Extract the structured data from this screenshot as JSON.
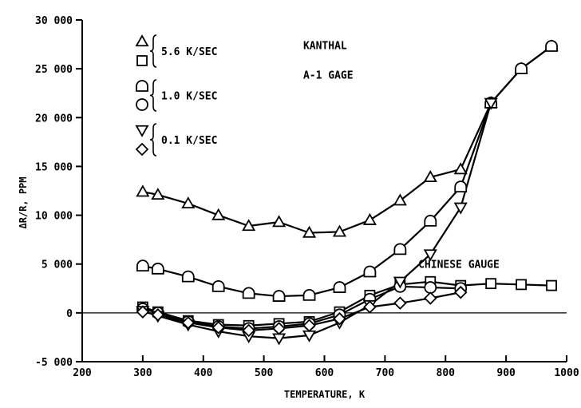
{
  "chart_data": {
    "type": "line",
    "xlabel": "TEMPERATURE, K",
    "ylabel": "ΔR/R, PPM",
    "xlim": [
      200,
      1000
    ],
    "ylim": [
      -5000,
      30000
    ],
    "xticks": [
      200,
      300,
      400,
      500,
      600,
      700,
      800,
      900,
      1000
    ],
    "xtick_labels": [
      "200",
      "300",
      "400",
      "500",
      "600",
      "700",
      "800",
      "900",
      "1000"
    ],
    "yticks": [
      -5000,
      0,
      5000,
      10000,
      15000,
      20000,
      25000,
      30000
    ],
    "ytick_labels": [
      "-5 000",
      "0",
      "5 000",
      "10 000",
      "15 000",
      "20 000",
      "25 000",
      "30 000"
    ],
    "zero_line": true,
    "grid": false,
    "legend_position": "top-left",
    "legend_groups": [
      {
        "label": "5.6 K/SEC",
        "markers": [
          "triangle-up",
          "square"
        ]
      },
      {
        "label": "1.0 K/SEC",
        "markers": [
          "rounded-square",
          "circle"
        ]
      },
      {
        "label": "0.1 K/SEC",
        "markers": [
          "triangle-down",
          "diamond"
        ]
      }
    ],
    "annotations": [
      {
        "text": "KANTHAL",
        "x": 565,
        "y": 27000
      },
      {
        "text": "A-1 GAGE",
        "x": 565,
        "y": 24000
      },
      {
        "text": "CHINESE GAUGE",
        "x": 755,
        "y": 4600
      }
    ],
    "series": [
      {
        "marker": "triangle-up",
        "x": [
          300,
          325,
          375,
          425,
          475,
          525,
          575,
          625,
          675,
          725,
          775,
          825,
          875,
          925,
          975
        ],
        "y": [
          12400,
          12100,
          11200,
          10000,
          8900,
          9300,
          8200,
          8300,
          9500,
          11500,
          13900,
          14700,
          21500,
          25000,
          27300
        ]
      },
      {
        "marker": "square",
        "x": [
          300,
          325,
          375,
          425,
          475,
          525,
          575,
          625,
          675,
          725,
          775,
          825,
          875,
          925,
          975
        ],
        "y": [
          600,
          100,
          -800,
          -1200,
          -1300,
          -1100,
          -900,
          100,
          1800,
          2900,
          3200,
          2800,
          3000,
          2900,
          2800
        ]
      },
      {
        "marker": "rounded-square",
        "x": [
          300,
          325,
          375,
          425,
          475,
          525,
          575,
          625,
          675,
          725,
          775,
          825,
          875,
          925,
          975
        ],
        "y": [
          4800,
          4500,
          3700,
          2700,
          2000,
          1700,
          1800,
          2600,
          4200,
          6500,
          9400,
          12900,
          21500,
          25000,
          27300
        ]
      },
      {
        "marker": "circle",
        "x": [
          300,
          325,
          375,
          425,
          475,
          525,
          575,
          625,
          675,
          725,
          775,
          825
        ],
        "y": [
          400,
          0,
          -900,
          -1400,
          -1600,
          -1400,
          -1100,
          -200,
          1400,
          2700,
          2600,
          2500
        ]
      },
      {
        "marker": "triangle-down",
        "x": [
          300,
          325,
          375,
          425,
          475,
          525,
          575,
          625,
          675,
          725,
          775,
          825,
          875
        ],
        "y": [
          200,
          -300,
          -1200,
          -1900,
          -2400,
          -2600,
          -2300,
          -1000,
          800,
          3200,
          6000,
          10800,
          21500
        ]
      },
      {
        "marker": "diamond",
        "x": [
          300,
          325,
          375,
          425,
          475,
          525,
          575,
          625,
          675,
          725,
          775,
          825
        ],
        "y": [
          100,
          -200,
          -1000,
          -1500,
          -1800,
          -1600,
          -1300,
          -600,
          600,
          1000,
          1500,
          2100
        ]
      }
    ]
  }
}
